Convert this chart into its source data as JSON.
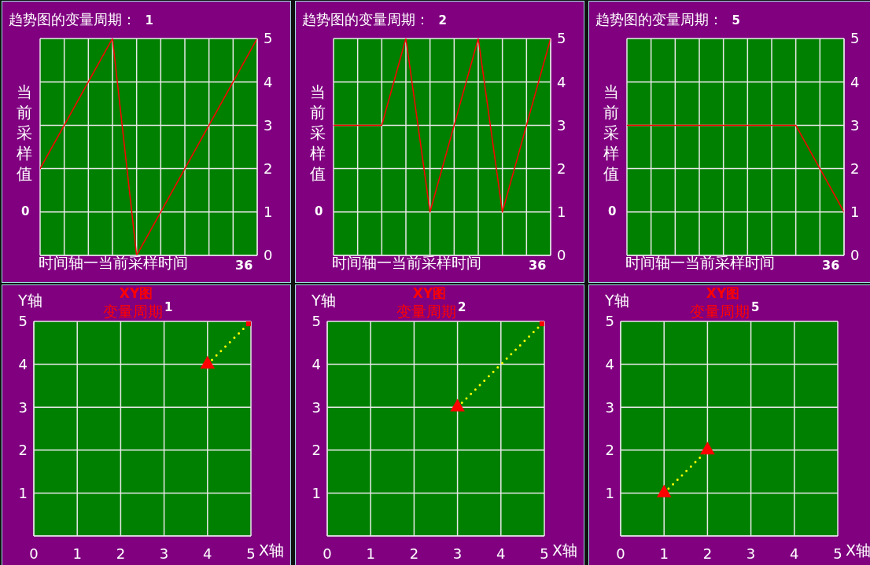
{
  "chart_data": [
    {
      "type": "line",
      "title": "趋势图的变量周期：  1",
      "annotations": [
        "0",
        "36"
      ],
      "xlabel": "时间轴一当前采样时间",
      "ylabel": "当前采样值",
      "color": "#ff0000",
      "categories": [
        null,
        null,
        null,
        null,
        null,
        null,
        null,
        null,
        null,
        null
      ],
      "values": [
        2,
        3,
        4,
        5,
        0,
        1,
        2,
        3,
        4,
        5
      ],
      "ylim": [
        0,
        5
      ],
      "yticks": [
        0,
        1,
        2,
        3,
        4,
        5
      ],
      "grid": true
    },
    {
      "type": "line",
      "title": "趋势图的变量周期：  2",
      "annotations": [
        "0",
        "36"
      ],
      "xlabel": "时间轴一当前采样时间",
      "ylabel": "当前采样值",
      "color": "#ff0000",
      "categories": [
        null,
        null,
        null,
        null,
        null,
        null,
        null,
        null,
        null,
        null
      ],
      "values": [
        3,
        3,
        3,
        5,
        1,
        3,
        5,
        1,
        3,
        5
      ],
      "ylim": [
        0,
        5
      ],
      "yticks": [
        0,
        1,
        2,
        3,
        4,
        5
      ],
      "grid": true
    },
    {
      "type": "line",
      "title": "趋势图的变量周期：  5",
      "annotations": [
        "0",
        "36"
      ],
      "xlabel": "时间轴一当前采样时间",
      "ylabel": "当前采样值",
      "color": "#ff0000",
      "categories": [
        null,
        null,
        null,
        null,
        null,
        null,
        null,
        null,
        null,
        null
      ],
      "values": [
        3,
        3,
        3,
        3,
        3,
        3,
        3,
        3,
        2,
        1
      ],
      "ylim": [
        0,
        5
      ],
      "yticks": [
        0,
        1,
        2,
        3,
        4,
        5
      ],
      "grid": true
    },
    {
      "type": "scatter",
      "title": "XY图",
      "subtitle": "变量周期$^{1}$",
      "xlabel": "X轴",
      "ylabel": "Y轴",
      "series": [
        {
          "color": "#ff0000",
          "marker": "triangle",
          "x": [
            4
          ],
          "values": [
            4
          ]
        },
        {
          "color": "#ff0000",
          "marker": "square",
          "x": [
            5
          ],
          "values": [
            5
          ]
        },
        {
          "type": "line",
          "color": "#ffff00",
          "line_style": "dotted",
          "marker": "none",
          "x": [
            4,
            5
          ],
          "values": [
            4,
            5
          ]
        }
      ],
      "xlim": [
        0,
        5
      ],
      "xticks": [
        0,
        1,
        2,
        3,
        4,
        5
      ],
      "ylim": [
        0,
        5
      ],
      "yticks": [
        1,
        2,
        3,
        4,
        5
      ],
      "grid": true
    },
    {
      "type": "scatter",
      "title": "XY图",
      "subtitle": "变量周期$^{2}$",
      "xlabel": "X轴",
      "ylabel": "Y轴",
      "series": [
        {
          "color": "#ff0000",
          "marker": "triangle",
          "x": [
            3
          ],
          "values": [
            3
          ]
        },
        {
          "color": "#ff0000",
          "marker": "square",
          "x": [
            5
          ],
          "values": [
            5
          ]
        },
        {
          "type": "line",
          "color": "#ffff00",
          "line_style": "dotted",
          "marker": "none",
          "x": [
            3,
            5
          ],
          "values": [
            3,
            5
          ]
        }
      ],
      "xlim": [
        0,
        5
      ],
      "xticks": [
        0,
        1,
        2,
        3,
        4,
        5
      ],
      "ylim": [
        0,
        5
      ],
      "yticks": [
        1,
        2,
        3,
        4,
        5
      ],
      "grid": true
    },
    {
      "type": "scatter",
      "title": "XY图",
      "subtitle": "变量周期$^{5}$",
      "xlabel": "X轴",
      "ylabel": "Y轴",
      "series": [
        {
          "color": "#ff0000",
          "marker": "triangle",
          "x": [
            1,
            2
          ],
          "values": [
            1,
            2
          ]
        },
        {
          "type": "line",
          "color": "#ffff00",
          "line_style": "dotted",
          "marker": "none",
          "x": [
            1,
            2
          ],
          "values": [
            1,
            2
          ]
        }
      ],
      "xlim": [
        0,
        5
      ],
      "xticks": [
        0,
        1,
        2,
        3,
        4,
        5
      ],
      "ylim": [
        0,
        5
      ],
      "yticks": [
        1,
        2,
        3,
        4,
        5
      ],
      "grid": true
    }
  ]
}
